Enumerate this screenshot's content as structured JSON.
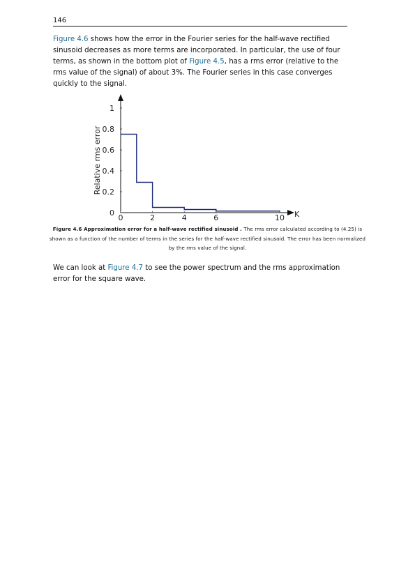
{
  "page": {
    "number": "146",
    "paragraph1": {
      "ref1": "Figure 4.6",
      "text1": " shows how the error in the Fourier series for the half-wave rectified sinusoid decreases as more terms are incorporated. In particular, the use of four terms, as shown in the bottom plot of ",
      "ref2": "Figure 4.5",
      "text2": ", has a rms error (relative to the rms value of the signal) of about 3%. The Fourier series in this case converges quickly to the signal."
    },
    "caption": {
      "label": "Figure 4.6 Approximation error for a half-wave rectified sinusoid .",
      "text": " The rms error calculated according to (4.25) is shown as a function of the number of terms in the series for the half-wave rectified sinusoid. The error has been normalized by the rms value of the signal."
    },
    "paragraph2": {
      "text1": "We can look at ",
      "ref": "Figure 4.7",
      "text2": " to see the power spectrum and the rms approximation error for the square wave."
    },
    "colors": {
      "link": "#1f6d95",
      "line": "#1a2a78"
    }
  },
  "chart_data": {
    "type": "line",
    "step": true,
    "ylabel": "Relative rms error",
    "xlabel": "K",
    "xlim": [
      0,
      10
    ],
    "ylim": [
      0,
      1
    ],
    "xticks": [
      "0",
      "2",
      "4",
      "6",
      "10"
    ],
    "xtick_values": [
      0,
      2,
      4,
      6,
      10
    ],
    "yticks": [
      "0",
      "0.2",
      "0.4",
      "0.6",
      "0.8",
      "1"
    ],
    "ytick_values": [
      0,
      0.2,
      0.4,
      0.6,
      0.8,
      1
    ],
    "series": [
      {
        "x": [
          0,
          1,
          2,
          4,
          6,
          10
        ],
        "y": [
          0.75,
          0.29,
          0.05,
          0.03,
          0.015,
          0.01
        ]
      }
    ]
  }
}
